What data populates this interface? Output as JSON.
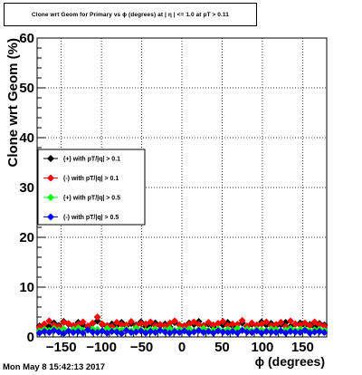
{
  "header": {
    "title": "Clone wrt Geom for Primary vs ϕ (degrees) at | η | <= 1.0 at pT > 0.11"
  },
  "footer": {
    "timestamp": "Mon May  8 15:42:13 2017"
  },
  "colors": {
    "series1": "#000000",
    "series2": "#ff0000",
    "series3": "#00ff00",
    "series4": "#0000ff"
  },
  "chart_data": {
    "type": "scatter",
    "title": "Clone wrt Geom for Primary vs ϕ (degrees) at | η | <= 1.0 at pT > 0.11",
    "xlabel": "ϕ (degrees)",
    "ylabel": "Clone wrt Geom (%)",
    "xlim": [
      -180,
      180
    ],
    "ylim": [
      0,
      60
    ],
    "x_ticks": [
      -150,
      -100,
      -50,
      0,
      50,
      100,
      150
    ],
    "y_ticks": [
      0,
      10,
      20,
      30,
      40,
      50,
      60
    ],
    "grid": true,
    "legend_position": "left-middle",
    "x": [
      -177,
      -171,
      -165,
      -159,
      -153,
      -147,
      -141,
      -135,
      -129,
      -123,
      -117,
      -111,
      -105,
      -99,
      -93,
      -87,
      -81,
      -75,
      -69,
      -63,
      -57,
      -51,
      -45,
      -39,
      -33,
      -27,
      -21,
      -15,
      -9,
      -3,
      3,
      9,
      15,
      21,
      27,
      33,
      39,
      45,
      51,
      57,
      63,
      69,
      75,
      81,
      87,
      93,
      99,
      105,
      111,
      117,
      123,
      129,
      135,
      141,
      147,
      153,
      159,
      165,
      171,
      177
    ],
    "series": [
      {
        "name": "(+) with pT/|q| > 0.1",
        "values": [
          2.2,
          2.5,
          2.1,
          2.8,
          2.3,
          3.1,
          2.6,
          2.2,
          2.9,
          2.4,
          2.0,
          2.7,
          3.2,
          2.5,
          2.1,
          2.6,
          2.3,
          2.9,
          2.2,
          2.7,
          2.4,
          3.0,
          2.1,
          2.5,
          2.8,
          2.3,
          2.6,
          2.0,
          2.9,
          2.4,
          2.2,
          2.8,
          2.5,
          3.1,
          2.3,
          2.6,
          2.0,
          2.7,
          2.4,
          2.9,
          2.2,
          2.5,
          2.8,
          2.1,
          2.6,
          2.3,
          3.0,
          2.4,
          2.7,
          2.2,
          2.5,
          2.9,
          2.1,
          2.6,
          2.8,
          2.3,
          2.5,
          2.0,
          2.7,
          2.4
        ]
      },
      {
        "name": "(-) with pT/|q| > 0.1",
        "values": [
          2.0,
          2.6,
          3.2,
          2.4,
          2.1,
          2.9,
          2.7,
          2.3,
          2.5,
          3.0,
          2.2,
          2.8,
          4.0,
          2.6,
          2.3,
          2.1,
          2.9,
          2.5,
          2.4,
          3.1,
          2.2,
          2.7,
          2.6,
          3.0,
          2.3,
          2.5,
          2.2,
          2.8,
          3.2,
          2.4,
          2.1,
          2.6,
          3.0,
          2.5,
          2.2,
          2.9,
          2.4,
          2.7,
          3.1,
          2.3,
          2.6,
          2.5,
          3.3,
          2.2,
          2.8,
          2.4,
          2.6,
          3.0,
          2.3,
          2.5,
          2.9,
          2.1,
          3.2,
          2.6,
          2.4,
          2.8,
          2.3,
          3.0,
          2.5,
          2.2
        ]
      },
      {
        "name": "(+) with pT/|q| > 0.5",
        "values": [
          1.2,
          1.5,
          1.3,
          1.7,
          1.4,
          1.6,
          1.2,
          1.5,
          1.8,
          1.3,
          1.4,
          1.6,
          1.5,
          1.2,
          1.7,
          1.3,
          1.5,
          1.4,
          1.6,
          1.2,
          1.8,
          1.4,
          1.3,
          1.5,
          1.6,
          1.2,
          1.4,
          1.7,
          1.3,
          1.5,
          1.4,
          1.6,
          1.2,
          1.5,
          1.7,
          1.3,
          1.4,
          1.6,
          1.2,
          1.5,
          1.3,
          1.7,
          1.4,
          1.6,
          1.2,
          1.5,
          1.4,
          1.3,
          1.6,
          1.5,
          1.2,
          1.4,
          1.7,
          1.3,
          1.5,
          1.6,
          1.2,
          1.4,
          1.5,
          1.3
        ]
      },
      {
        "name": "(-) with pT/|q| > 0.5",
        "values": [
          0.8,
          1.1,
          0.9,
          1.3,
          1.0,
          0.7,
          1.2,
          0.9,
          1.1,
          0.8,
          1.4,
          1.0,
          0.9,
          1.2,
          0.8,
          1.1,
          1.0,
          0.7,
          1.3,
          0.9,
          1.0,
          1.2,
          0.8,
          1.1,
          0.9,
          1.3,
          1.0,
          0.8,
          1.1,
          0.9,
          1.2,
          0.8,
          1.0,
          1.3,
          0.9,
          1.1,
          0.8,
          1.2,
          1.0,
          0.9,
          1.1,
          0.8,
          1.3,
          1.0,
          0.9,
          1.2,
          0.8,
          1.1,
          1.0,
          0.9,
          1.2,
          0.8,
          1.1,
          1.0,
          0.9,
          1.3,
          0.8,
          1.0,
          1.1,
          0.9
        ]
      }
    ]
  }
}
